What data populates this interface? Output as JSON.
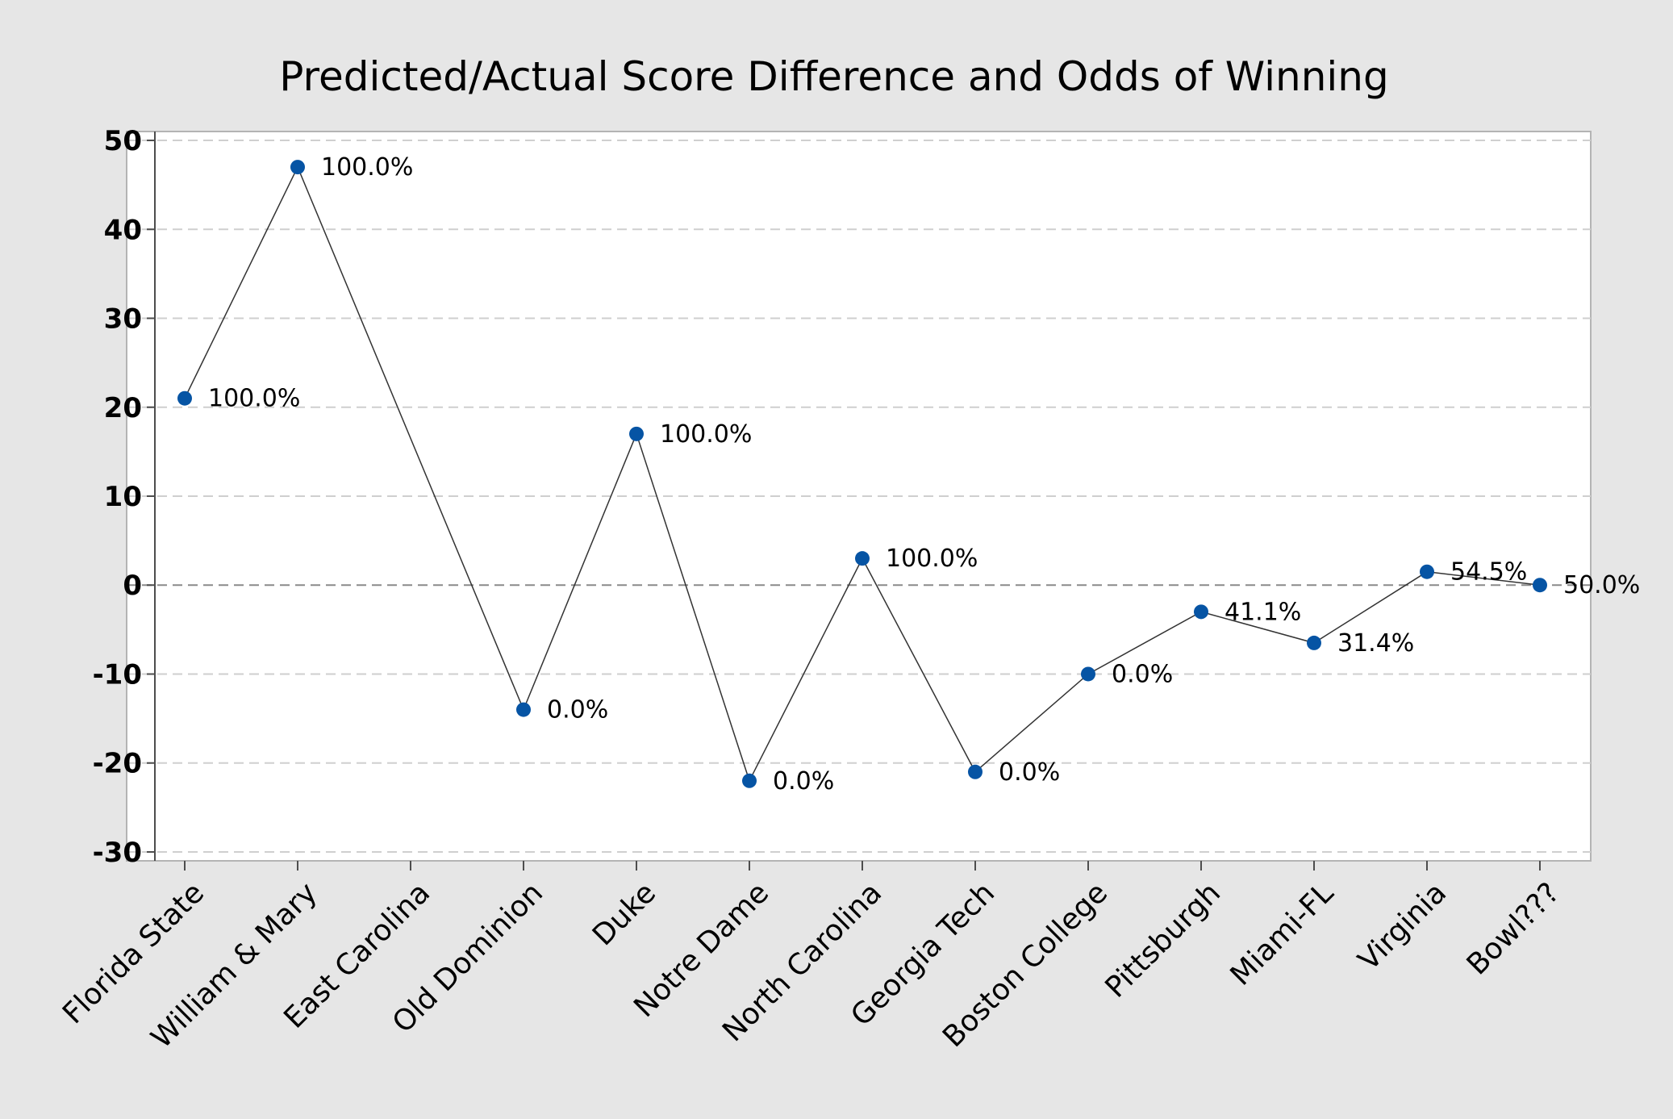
{
  "chart_data": {
    "type": "line",
    "title": "Predicted/Actual Score Difference and Odds of Winning",
    "xlabel": "",
    "ylabel": "",
    "categories": [
      "Florida State",
      "William & Mary",
      "East Carolina",
      "Old Dominion",
      "Duke",
      "Notre Dame",
      "North Carolina",
      "Georgia Tech",
      "Boston College",
      "Pittsburgh",
      "Miami-FL",
      "Virginia",
      "Bowl???"
    ],
    "series": [
      {
        "values": [
          21,
          47,
          null,
          -14,
          17,
          -22,
          3,
          -21,
          -10,
          -3,
          -6.5,
          1.5,
          0
        ],
        "labels": [
          "100.0%",
          "100.0%",
          "",
          "0.0%",
          "100.0%",
          "0.0%",
          "100.0%",
          "0.0%",
          "0.0%",
          "41.1%",
          "31.4%",
          "54.5%",
          "50.0%"
        ]
      }
    ],
    "ylim": [
      -31,
      51
    ],
    "yticks": [
      50,
      40,
      30,
      20,
      10,
      0,
      -10,
      -20,
      -30
    ],
    "reference_line": 0,
    "grid": true,
    "legend": "none",
    "colors": {
      "marker": "#0654a4",
      "line": "#333333",
      "grid": "#cfcfcf",
      "reference": "#8a8a8a",
      "background": "#e6e6e6",
      "plot_background": "#ffffff"
    }
  }
}
